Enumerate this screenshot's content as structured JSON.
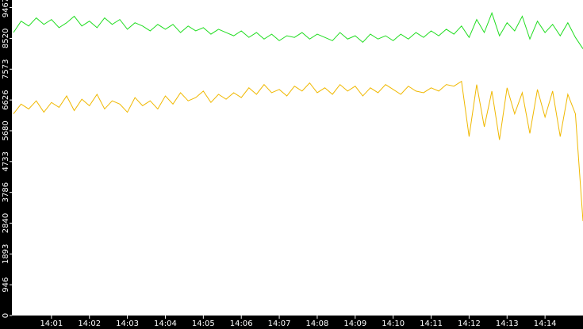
{
  "chart_data": {
    "type": "line",
    "x": [
      0,
      0.2,
      0.4,
      0.6,
      0.8,
      1,
      1.2,
      1.4,
      1.6,
      1.8,
      2,
      2.2,
      2.4,
      2.6,
      2.8,
      3,
      3.2,
      3.4,
      3.6,
      3.8,
      4,
      4.2,
      4.4,
      4.6,
      4.8,
      5,
      5.2,
      5.4,
      5.6,
      5.8,
      6,
      6.2,
      6.4,
      6.6,
      6.8,
      7,
      7.2,
      7.4,
      7.6,
      7.8,
      8,
      8.2,
      8.4,
      8.6,
      8.8,
      9,
      9.2,
      9.4,
      9.6,
      9.8,
      10,
      10.2,
      10.4,
      10.6,
      10.8,
      11,
      11.2,
      11.4,
      11.6,
      11.8,
      12,
      12.2,
      12.4,
      12.6,
      12.8,
      13,
      13.2,
      13.4,
      13.6,
      13.8,
      14,
      14.2,
      14.4,
      14.6,
      14.8,
      15
    ],
    "series": [
      {
        "color": "#22dd22",
        "values": [
          8700,
          9050,
          8900,
          9150,
          8950,
          9100,
          8850,
          9000,
          9200,
          8900,
          9050,
          8850,
          9150,
          8950,
          9100,
          8800,
          9000,
          8900,
          8750,
          8950,
          8800,
          8950,
          8700,
          8900,
          8750,
          8850,
          8650,
          8800,
          8700,
          8600,
          8750,
          8550,
          8700,
          8500,
          8650,
          8450,
          8600,
          8550,
          8700,
          8500,
          8650,
          8550,
          8450,
          8700,
          8500,
          8600,
          8400,
          8650,
          8500,
          8600,
          8450,
          8650,
          8500,
          8700,
          8550,
          8750,
          8600,
          8800,
          8650,
          8900,
          8550,
          9100,
          8700,
          9300,
          8600,
          9000,
          8750,
          9200,
          8500,
          9050,
          8700,
          8950,
          8600,
          9000,
          8550,
          8200
        ]
      },
      {
        "color": "#f0b800",
        "values": [
          6200,
          6500,
          6350,
          6600,
          6250,
          6550,
          6400,
          6750,
          6300,
          6650,
          6450,
          6800,
          6350,
          6600,
          6500,
          6250,
          6700,
          6450,
          6600,
          6350,
          6750,
          6500,
          6850,
          6600,
          6700,
          6900,
          6550,
          6800,
          6650,
          6850,
          6700,
          7000,
          6800,
          7100,
          6850,
          6950,
          6750,
          7050,
          6900,
          7150,
          6850,
          7000,
          6800,
          7100,
          6900,
          7050,
          6750,
          7000,
          6850,
          7100,
          6950,
          6800,
          7050,
          6900,
          6850,
          7000,
          6900,
          7100,
          7050,
          7200,
          5500,
          7100,
          5800,
          6900,
          5400,
          7000,
          6200,
          6850,
          5600,
          6950,
          6100,
          6900,
          5500,
          6800,
          6200,
          2900
        ]
      }
    ],
    "xlim": [
      0,
      15
    ],
    "xticks": [
      {
        "value": 1,
        "label": "14:01"
      },
      {
        "value": 2,
        "label": "14:02"
      },
      {
        "value": 3,
        "label": "14:03"
      },
      {
        "value": 4,
        "label": "14:04"
      },
      {
        "value": 5,
        "label": "14:05"
      },
      {
        "value": 6,
        "label": "14:06"
      },
      {
        "value": 7,
        "label": "14:07"
      },
      {
        "value": 8,
        "label": "14:08"
      },
      {
        "value": 9,
        "label": "14:09"
      },
      {
        "value": 10,
        "label": "14:10"
      },
      {
        "value": 11,
        "label": "14:11"
      },
      {
        "value": 12,
        "label": "14:12"
      },
      {
        "value": 13,
        "label": "14:13"
      },
      {
        "value": 14,
        "label": "14:14"
      }
    ],
    "ylim": [
      0,
      9700
    ],
    "yticks": [
      0,
      946,
      1893,
      2840,
      3786,
      4733,
      5680,
      6626,
      7573,
      8520,
      9467
    ]
  }
}
